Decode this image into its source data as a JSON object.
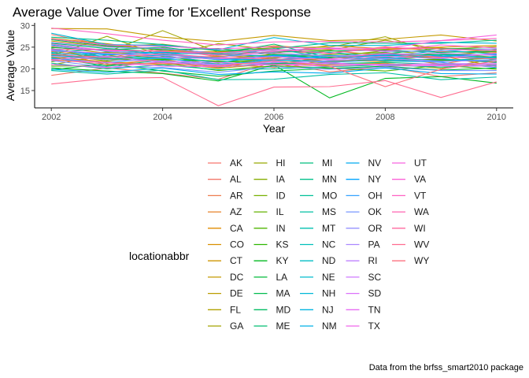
{
  "chart_data": {
    "type": "line",
    "title": "Average Value Over Time for 'Excellent' Response",
    "xlabel": "Year",
    "ylabel": "Average Value",
    "xlim": [
      2001.7,
      2010.3
    ],
    "ylim": [
      11.0,
      30.6
    ],
    "x_ticks": [
      2002,
      2004,
      2006,
      2008,
      2010
    ],
    "y_ticks": [
      15,
      20,
      25,
      30
    ],
    "grid": false,
    "legend_title": "locationabbr",
    "legend_position": "bottom",
    "caption": "Data from the brfss_smart2010 package",
    "x": [
      2002,
      2003,
      2004,
      2005,
      2006,
      2007,
      2008,
      2009,
      2010
    ],
    "series": [
      {
        "name": "AK",
        "color": "#F8766D",
        "values": [
          27.9,
          25.4,
          24.6,
          22.8,
          24.1,
          23.5,
          25.1,
          24.0,
          23.6
        ]
      },
      {
        "name": "AL",
        "color": "#F3786B",
        "values": [
          18.5,
          20.2,
          19.0,
          17.6,
          21.6,
          19.3,
          20.5,
          18.2,
          19.1
        ]
      },
      {
        "name": "AR",
        "color": "#EE7C4F",
        "values": [
          24.1,
          22.5,
          24.8,
          23.0,
          22.4,
          24.2,
          23.1,
          22.6,
          24.4
        ]
      },
      {
        "name": "AZ",
        "color": "#E7822A",
        "values": [
          24.0,
          21.0,
          22.2,
          20.2,
          22.9,
          21.6,
          22.8,
          21.1,
          23.0
        ]
      },
      {
        "name": "CA",
        "color": "#E08B00",
        "values": [
          22.7,
          21.6,
          21.0,
          21.2,
          20.3,
          22.0,
          21.7,
          22.3,
          21.4
        ]
      },
      {
        "name": "CO",
        "color": "#D89000",
        "values": [
          26.4,
          25.1,
          25.7,
          24.1,
          23.6,
          25.4,
          24.6,
          25.0,
          25.4
        ]
      },
      {
        "name": "CT",
        "color": "#CF9400",
        "values": [
          27.0,
          25.8,
          24.2,
          23.9,
          25.3,
          24.5,
          24.4,
          24.8,
          23.8
        ]
      },
      {
        "name": "DC",
        "color": "#C49A00",
        "values": [
          29.3,
          29.2,
          27.3,
          26.3,
          27.7,
          26.5,
          26.8,
          27.8,
          26.4
        ]
      },
      {
        "name": "DE",
        "color": "#BB9D00",
        "values": [
          20.9,
          23.2,
          21.6,
          20.1,
          21.2,
          20.9,
          21.3,
          20.1,
          22.4
        ]
      },
      {
        "name": "FL",
        "color": "#B0A100",
        "values": [
          25.1,
          23.6,
          22.5,
          22.9,
          23.1,
          21.7,
          22.1,
          23.0,
          20.5
        ]
      },
      {
        "name": "GA",
        "color": "#A3A500",
        "values": [
          22.2,
          23.9,
          28.8,
          23.8,
          24.9,
          25.0,
          27.4,
          23.5,
          22.7
        ]
      },
      {
        "name": "HI",
        "color": "#96A900",
        "values": [
          23.0,
          27.5,
          22.9,
          25.8,
          24.4,
          24.3,
          26.6,
          24.5,
          25.1
        ]
      },
      {
        "name": "IA",
        "color": "#86AD00",
        "values": [
          24.7,
          22.0,
          23.5,
          22.1,
          23.4,
          22.8,
          24.2,
          23.2,
          24.0
        ]
      },
      {
        "name": "ID",
        "color": "#76B000",
        "values": [
          21.6,
          23.8,
          23.2,
          20.8,
          22.6,
          23.3,
          23.8,
          22.2,
          21.6
        ]
      },
      {
        "name": "IL",
        "color": "#64B200",
        "values": [
          23.5,
          21.8,
          22.8,
          21.6,
          22.1,
          21.4,
          22.5,
          21.9,
          22.5
        ]
      },
      {
        "name": "IN",
        "color": "#4FB400",
        "values": [
          20.6,
          20.8,
          21.4,
          19.6,
          20.7,
          20.2,
          19.5,
          20.8,
          19.9
        ]
      },
      {
        "name": "KS",
        "color": "#2DB600",
        "values": [
          23.2,
          22.3,
          22.2,
          21.8,
          21.1,
          22.7,
          22.0,
          22.1,
          21.7
        ]
      },
      {
        "name": "KY",
        "color": "#00B81F",
        "values": [
          20.2,
          19.5,
          18.9,
          17.2,
          20.9,
          13.3,
          17.8,
          18.2,
          16.7
        ]
      },
      {
        "name": "LA",
        "color": "#00BA38",
        "values": [
          19.8,
          21.2,
          19.5,
          18.3,
          19.5,
          20.1,
          20.6,
          19.7,
          20.2
        ]
      },
      {
        "name": "MA",
        "color": "#00BB4E",
        "values": [
          26.7,
          25.3,
          24.4,
          24.7,
          23.3,
          22.4,
          23.5,
          24.7,
          24.5
        ]
      },
      {
        "name": "MD",
        "color": "#00BC61",
        "values": [
          24.9,
          24.4,
          25.0,
          23.4,
          23.9,
          24.1,
          24.3,
          23.8,
          24.1
        ]
      },
      {
        "name": "ME",
        "color": "#00BE70",
        "values": [
          25.9,
          24.7,
          23.9,
          23.5,
          25.7,
          22.5,
          23.1,
          23.3,
          23.2
        ]
      },
      {
        "name": "MI",
        "color": "#00BF7D",
        "values": [
          22.6,
          20.6,
          22.0,
          20.4,
          21.3,
          21.2,
          21.5,
          21.0,
          21.1
        ]
      },
      {
        "name": "MN",
        "color": "#00C08B",
        "values": [
          27.3,
          26.6,
          25.6,
          24.2,
          24.6,
          26.0,
          25.9,
          25.9,
          26.6
        ]
      },
      {
        "name": "MO",
        "color": "#00C097",
        "values": [
          21.3,
          20.0,
          20.9,
          19.8,
          20.0,
          20.5,
          20.9,
          20.4,
          20.8
        ]
      },
      {
        "name": "MS",
        "color": "#00C0A3",
        "values": [
          19.6,
          18.8,
          19.7,
          17.5,
          17.6,
          18.7,
          19.1,
          17.5,
          18.1
        ]
      },
      {
        "name": "MT",
        "color": "#00C0AF",
        "values": [
          23.8,
          24.6,
          23.4,
          22.5,
          24.7,
          22.4,
          23.7,
          22.8,
          22.5
        ]
      },
      {
        "name": "NC",
        "color": "#00BFBA",
        "values": [
          23.1,
          22.4,
          22.4,
          21.1,
          21.9,
          23.0,
          21.8,
          21.6,
          22.9
        ]
      },
      {
        "name": "ND",
        "color": "#00BDC4",
        "values": [
          25.5,
          24.0,
          23.7,
          23.3,
          22.9,
          23.8,
          22.7,
          24.3,
          23.4
        ]
      },
      {
        "name": "NE",
        "color": "#00BBCE",
        "values": [
          24.3,
          23.4,
          23.0,
          21.4,
          23.2,
          23.1,
          22.3,
          23.2,
          22.6
        ]
      },
      {
        "name": "NH",
        "color": "#00B8D7",
        "values": [
          28.2,
          25.6,
          25.4,
          24.4,
          27.2,
          25.4,
          25.4,
          26.1,
          25.9
        ]
      },
      {
        "name": "NJ",
        "color": "#00B4E0",
        "values": [
          23.6,
          22.9,
          22.5,
          22.4,
          22.0,
          21.8,
          22.6,
          21.8,
          22.1
        ]
      },
      {
        "name": "NM",
        "color": "#00B0E8",
        "values": [
          24.6,
          22.7,
          23.3,
          22.1,
          22.1,
          23.1,
          23.0,
          22.3,
          21.5
        ]
      },
      {
        "name": "NV",
        "color": "#00ABEF",
        "values": [
          19.9,
          19.2,
          20.2,
          18.7,
          19.3,
          19.0,
          20.2,
          18.9,
          18.8
        ]
      },
      {
        "name": "NY",
        "color": "#00A5FF",
        "values": [
          24.4,
          23.2,
          23.8,
          22.2,
          23.0,
          22.4,
          23.3,
          22.9,
          23.3
        ]
      },
      {
        "name": "OH",
        "color": "#35A2FF",
        "values": [
          22.4,
          21.4,
          22.6,
          20.6,
          22.3,
          21.5,
          22.1,
          21.5,
          20.3
        ]
      },
      {
        "name": "OK",
        "color": "#7997FF",
        "values": [
          21.9,
          20.4,
          20.3,
          19.2,
          20.5,
          19.9,
          20.4,
          19.6,
          19.6
        ]
      },
      {
        "name": "OR",
        "color": "#9590FF",
        "values": [
          26.1,
          25.0,
          24.7,
          23.6,
          24.3,
          24.7,
          24.0,
          24.2,
          24.6
        ]
      },
      {
        "name": "PA",
        "color": "#AB88FF",
        "values": [
          22.9,
          22.1,
          21.8,
          21.0,
          21.4,
          21.9,
          22.4,
          21.7,
          22.0
        ]
      },
      {
        "name": "RI",
        "color": "#BF80FF",
        "values": [
          25.3,
          24.1,
          23.1,
          22.7,
          23.7,
          22.9,
          23.4,
          23.6,
          23.1
        ]
      },
      {
        "name": "SC",
        "color": "#CF78FF",
        "values": [
          22.1,
          22.9,
          21.5,
          20.8,
          21.7,
          21.1,
          21.0,
          21.2,
          21.2
        ]
      },
      {
        "name": "SD",
        "color": "#DC71FA",
        "values": [
          24.2,
          23.6,
          22.7,
          22.3,
          22.8,
          22.1,
          22.9,
          22.4,
          23.6
        ]
      },
      {
        "name": "TN",
        "color": "#E76BF3",
        "values": [
          21.0,
          20.3,
          21.7,
          21.5,
          20.9,
          21.4,
          20.7,
          20.7,
          20.6
        ]
      },
      {
        "name": "TX",
        "color": "#F066EA",
        "values": [
          22.0,
          21.5,
          20.6,
          20.5,
          21.0,
          20.6,
          21.1,
          20.9,
          21.0
        ]
      },
      {
        "name": "UT",
        "color": "#F763E0",
        "values": [
          25.7,
          24.2,
          24.1,
          23.2,
          24.0,
          24.8,
          24.7,
          26.5,
          27.8
        ]
      },
      {
        "name": "VA",
        "color": "#FB61D7",
        "values": [
          26.9,
          25.5,
          25.2,
          24.6,
          25.1,
          24.6,
          24.1,
          25.5,
          24.8
        ]
      },
      {
        "name": "VT",
        "color": "#FF61C3",
        "values": [
          29.4,
          28.1,
          26.6,
          25.5,
          26.2,
          26.3,
          26.2,
          26.5,
          27.0
        ]
      },
      {
        "name": "WA",
        "color": "#FF64B0",
        "values": [
          24.5,
          24.4,
          24.0,
          23.7,
          24.5,
          23.6,
          24.9,
          24.6,
          24.2
        ]
      },
      {
        "name": "WI",
        "color": "#FF689F",
        "values": [
          23.3,
          22.6,
          23.5,
          22.6,
          22.2,
          22.3,
          23.6,
          22.7,
          22.3
        ]
      },
      {
        "name": "WV",
        "color": "#FF6C90",
        "values": [
          16.5,
          17.8,
          18.0,
          11.5,
          15.8,
          15.9,
          17.3,
          13.4,
          17.0
        ]
      },
      {
        "name": "WY",
        "color": "#FC717F",
        "values": [
          22.1,
          21.1,
          21.3,
          20.6,
          21.9,
          20.6,
          15.9,
          19.9,
          21.8
        ]
      }
    ]
  }
}
